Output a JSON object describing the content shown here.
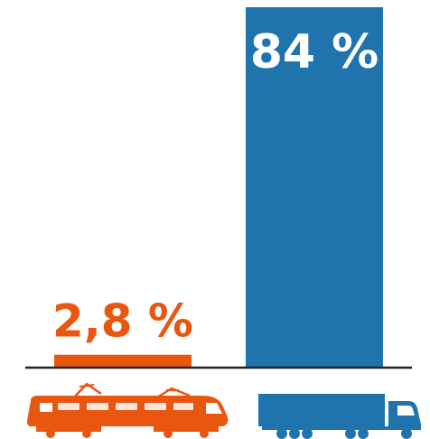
{
  "chart_data": {
    "type": "bar",
    "categories": [
      "rail",
      "road"
    ],
    "values": [
      2.8,
      84
    ],
    "value_labels": [
      "2,8 %",
      "84 %"
    ],
    "ylim": [
      0,
      84
    ],
    "grid": false,
    "legend": "none",
    "colors": {
      "rail": "#e8560f",
      "road": "#1f74ad"
    },
    "category_icons": [
      "train-icon",
      "truck-icon"
    ]
  }
}
